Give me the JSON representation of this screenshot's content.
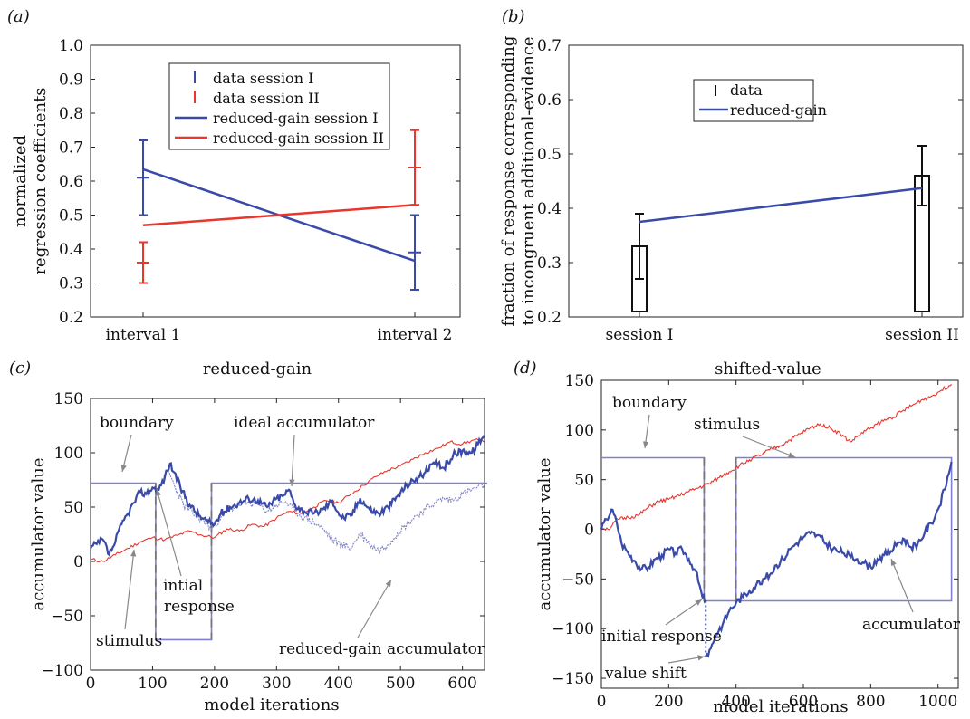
{
  "chart_data": [
    {
      "panel": "(a)",
      "type": "line",
      "xlabel": "reduced-gain",
      "ylabel": [
        "normalized",
        "regression coefficients"
      ],
      "categories": [
        "interval 1",
        "interval 2"
      ],
      "ylim": [
        0.2,
        1.0
      ],
      "yticks": [
        "0.2",
        "0.3",
        "0.4",
        "0.5",
        "0.6",
        "0.7",
        "0.8",
        "0.9",
        "1.0"
      ],
      "legend": [
        "data session I",
        "data session II",
        "reduced-gain session I",
        "reduced-gain session II"
      ],
      "colors": {
        "session_I": "#3a4aa8",
        "session_II": "#e8362d"
      },
      "data": [
        {
          "name": "data session I",
          "values": [
            0.61,
            0.39
          ],
          "err_low": [
            0.5,
            0.28
          ],
          "err_high": [
            0.72,
            0.5
          ]
        },
        {
          "name": "data session II",
          "values": [
            0.36,
            0.64
          ],
          "err_low": [
            0.3,
            0.53
          ],
          "err_high": [
            0.42,
            0.75
          ]
        }
      ],
      "model": [
        {
          "name": "reduced-gain session I",
          "values": [
            0.635,
            0.365
          ]
        },
        {
          "name": "reduced-gain session II",
          "values": [
            0.47,
            0.53
          ]
        }
      ]
    },
    {
      "panel": "(b)",
      "type": "bar",
      "xlabel": "shifted-value",
      "ylabel": [
        "fraction of response corresponding",
        "to incongruent additional-evidence"
      ],
      "categories": [
        "session I",
        "session II"
      ],
      "ylim": [
        0.2,
        0.7
      ],
      "yticks": [
        "0.2",
        "0.3",
        "0.4",
        "0.5",
        "0.6",
        "0.7"
      ],
      "legend": [
        "data",
        "reduced-gain"
      ],
      "data": {
        "values": [
          0.33,
          0.46
        ],
        "err_low": [
          0.27,
          0.405
        ],
        "err_high": [
          0.39,
          0.515
        ]
      },
      "model": {
        "values": [
          0.375,
          0.437
        ]
      }
    },
    {
      "panel": "(c)",
      "type": "line",
      "xlabel": "model iterations",
      "ylabel": "accumulator value",
      "xlim": [
        0,
        640
      ],
      "ylim": [
        -100,
        150
      ],
      "xticks": [
        "0",
        "100",
        "200",
        "300",
        "400",
        "500",
        "600"
      ],
      "yticks": [
        "−100",
        "−50",
        "0",
        "50",
        "100",
        "150"
      ],
      "annotations": [
        "boundary",
        "ideal accumulator",
        "intial",
        "response",
        "stimulus",
        "reduced-gain accumulator"
      ],
      "boundary": [
        [
          0,
          72
        ],
        [
          105,
          72
        ],
        [
          105,
          -72
        ],
        [
          195,
          -72
        ],
        [
          195,
          72
        ],
        [
          640,
          72
        ]
      ],
      "dashed_lines_x": [
        105,
        195
      ],
      "stimulus": [
        [
          0,
          2
        ],
        [
          20,
          0
        ],
        [
          40,
          6
        ],
        [
          60,
          12
        ],
        [
          80,
          18
        ],
        [
          100,
          22
        ],
        [
          120,
          20
        ],
        [
          140,
          24
        ],
        [
          160,
          28
        ],
        [
          180,
          24
        ],
        [
          200,
          22
        ],
        [
          220,
          30
        ],
        [
          240,
          28
        ],
        [
          260,
          34
        ],
        [
          280,
          32
        ],
        [
          300,
          40
        ],
        [
          320,
          46
        ],
        [
          340,
          44
        ],
        [
          360,
          50
        ],
        [
          380,
          56
        ],
        [
          400,
          54
        ],
        [
          420,
          62
        ],
        [
          440,
          70
        ],
        [
          460,
          78
        ],
        [
          480,
          84
        ],
        [
          500,
          88
        ],
        [
          520,
          94
        ],
        [
          540,
          100
        ],
        [
          560,
          104
        ],
        [
          580,
          110
        ],
        [
          600,
          108
        ],
        [
          620,
          112
        ],
        [
          635,
          110
        ]
      ],
      "ideal_accumulator": [
        [
          0,
          12
        ],
        [
          10,
          16
        ],
        [
          20,
          20
        ],
        [
          30,
          6
        ],
        [
          40,
          18
        ],
        [
          50,
          34
        ],
        [
          60,
          44
        ],
        [
          70,
          54
        ],
        [
          80,
          64
        ],
        [
          90,
          62
        ],
        [
          100,
          68
        ],
        [
          110,
          66
        ],
        [
          120,
          78
        ],
        [
          128,
          90
        ],
        [
          135,
          82
        ],
        [
          145,
          68
        ],
        [
          160,
          52
        ],
        [
          175,
          42
        ],
        [
          190,
          36
        ],
        [
          200,
          34
        ],
        [
          210,
          44
        ],
        [
          225,
          50
        ],
        [
          240,
          54
        ],
        [
          255,
          58
        ],
        [
          270,
          56
        ],
        [
          285,
          50
        ],
        [
          300,
          58
        ],
        [
          310,
          60
        ],
        [
          320,
          66
        ],
        [
          330,
          52
        ],
        [
          345,
          46
        ],
        [
          360,
          44
        ],
        [
          375,
          48
        ],
        [
          390,
          56
        ],
        [
          405,
          40
        ],
        [
          420,
          42
        ],
        [
          435,
          58
        ],
        [
          450,
          48
        ],
        [
          465,
          44
        ],
        [
          480,
          50
        ],
        [
          495,
          60
        ],
        [
          510,
          70
        ],
        [
          525,
          76
        ],
        [
          540,
          82
        ],
        [
          555,
          90
        ],
        [
          570,
          86
        ],
        [
          585,
          98
        ],
        [
          600,
          102
        ],
        [
          615,
          100
        ],
        [
          625,
          108
        ],
        [
          635,
          116
        ]
      ],
      "reduced_gain_accumulator": [
        [
          115,
          72
        ],
        [
          125,
          84
        ],
        [
          135,
          70
        ],
        [
          150,
          52
        ],
        [
          165,
          44
        ],
        [
          180,
          38
        ],
        [
          195,
          30
        ],
        [
          210,
          40
        ],
        [
          225,
          48
        ],
        [
          240,
          52
        ],
        [
          255,
          54
        ],
        [
          270,
          52
        ],
        [
          285,
          46
        ],
        [
          300,
          52
        ],
        [
          315,
          55
        ],
        [
          330,
          46
        ],
        [
          345,
          40
        ],
        [
          360,
          36
        ],
        [
          375,
          30
        ],
        [
          390,
          20
        ],
        [
          405,
          16
        ],
        [
          420,
          12
        ],
        [
          435,
          26
        ],
        [
          450,
          16
        ],
        [
          465,
          10
        ],
        [
          480,
          16
        ],
        [
          495,
          26
        ],
        [
          510,
          34
        ],
        [
          525,
          42
        ],
        [
          540,
          48
        ],
        [
          555,
          54
        ],
        [
          570,
          58
        ],
        [
          585,
          56
        ],
        [
          600,
          62
        ],
        [
          615,
          66
        ],
        [
          635,
          70
        ]
      ]
    },
    {
      "panel": "(d)",
      "type": "line",
      "xlabel": "model iterations",
      "ylabel": "accumulator value",
      "xlim": [
        0,
        1060
      ],
      "ylim": [
        -160,
        150
      ],
      "xticks": [
        "0",
        "200",
        "400",
        "600",
        "800",
        "1000"
      ],
      "yticks": [
        "−150",
        "−100",
        "−50",
        "0",
        "50",
        "100",
        "150"
      ],
      "annotations": [
        "boundary",
        "stimulus",
        "initial response",
        "value shift",
        "accumulator"
      ],
      "boundary": [
        [
          0,
          72
        ],
        [
          305,
          72
        ],
        [
          305,
          -72
        ],
        [
          400,
          -72
        ],
        [
          400,
          72
        ],
        [
          1040,
          72
        ],
        [
          1040,
          -72
        ],
        [
          400,
          -72
        ]
      ],
      "dashed_lines_x": [
        305,
        400
      ],
      "stimulus": [
        [
          0,
          2
        ],
        [
          20,
          0
        ],
        [
          50,
          10
        ],
        [
          80,
          12
        ],
        [
          110,
          14
        ],
        [
          140,
          22
        ],
        [
          170,
          28
        ],
        [
          200,
          30
        ],
        [
          230,
          34
        ],
        [
          260,
          38
        ],
        [
          290,
          42
        ],
        [
          320,
          46
        ],
        [
          350,
          52
        ],
        [
          380,
          58
        ],
        [
          410,
          64
        ],
        [
          440,
          70
        ],
        [
          470,
          74
        ],
        [
          500,
          80
        ],
        [
          530,
          84
        ],
        [
          560,
          90
        ],
        [
          590,
          96
        ],
        [
          620,
          102
        ],
        [
          650,
          106
        ],
        [
          680,
          102
        ],
        [
          710,
          96
        ],
        [
          740,
          88
        ],
        [
          770,
          96
        ],
        [
          800,
          102
        ],
        [
          830,
          108
        ],
        [
          860,
          112
        ],
        [
          890,
          118
        ],
        [
          920,
          124
        ],
        [
          950,
          130
        ],
        [
          980,
          134
        ],
        [
          1010,
          140
        ],
        [
          1040,
          146
        ]
      ],
      "accumulator": [
        [
          0,
          0
        ],
        [
          15,
          10
        ],
        [
          30,
          20
        ],
        [
          45,
          8
        ],
        [
          60,
          -14
        ],
        [
          80,
          -24
        ],
        [
          100,
          -32
        ],
        [
          120,
          -40
        ],
        [
          140,
          -38
        ],
        [
          160,
          -30
        ],
        [
          180,
          -26
        ],
        [
          200,
          -20
        ],
        [
          220,
          -24
        ],
        [
          240,
          -20
        ],
        [
          260,
          -30
        ],
        [
          280,
          -42
        ],
        [
          300,
          -68
        ],
        [
          310,
          -72
        ]
      ],
      "accumulator_after_shift": [
        [
          310,
          -128
        ],
        [
          325,
          -120
        ],
        [
          340,
          -106
        ],
        [
          360,
          -96
        ],
        [
          380,
          -82
        ],
        [
          400,
          -74
        ],
        [
          420,
          -68
        ],
        [
          440,
          -62
        ],
        [
          460,
          -56
        ],
        [
          480,
          -50
        ],
        [
          500,
          -46
        ],
        [
          520,
          -36
        ],
        [
          540,
          -30
        ],
        [
          560,
          -20
        ],
        [
          580,
          -14
        ],
        [
          600,
          -8
        ],
        [
          620,
          -4
        ],
        [
          640,
          -6
        ],
        [
          660,
          -12
        ],
        [
          680,
          -18
        ],
        [
          700,
          -22
        ],
        [
          720,
          -24
        ],
        [
          740,
          -28
        ],
        [
          760,
          -30
        ],
        [
          780,
          -34
        ],
        [
          800,
          -38
        ],
        [
          820,
          -30
        ],
        [
          840,
          -26
        ],
        [
          860,
          -22
        ],
        [
          880,
          -14
        ],
        [
          900,
          -10
        ],
        [
          920,
          -18
        ],
        [
          940,
          -14
        ],
        [
          960,
          -4
        ],
        [
          980,
          6
        ],
        [
          1000,
          20
        ],
        [
          1020,
          40
        ],
        [
          1040,
          68
        ]
      ]
    }
  ]
}
